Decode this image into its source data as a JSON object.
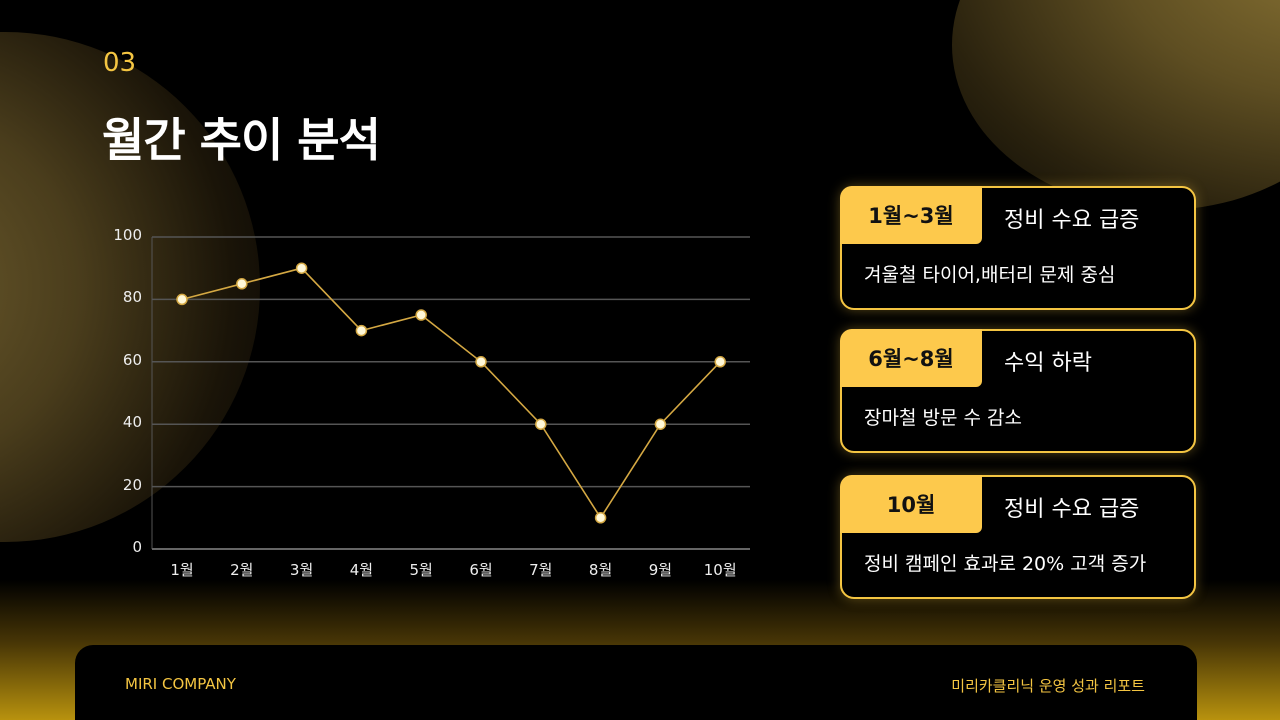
{
  "section": {
    "number": "03",
    "title": "월간 추이 분석"
  },
  "chart_data": {
    "type": "line",
    "title": "",
    "xlabel": "",
    "ylabel": "",
    "categories": [
      "1월",
      "2월",
      "3월",
      "4월",
      "5월",
      "6월",
      "7월",
      "8월",
      "9월",
      "10월"
    ],
    "values": [
      80,
      85,
      90,
      70,
      75,
      60,
      40,
      10,
      40,
      60
    ],
    "ylim": [
      0,
      100
    ],
    "yticks": [
      0,
      20,
      40,
      60,
      80,
      100
    ],
    "grid": true,
    "legend": null,
    "line_color": "#d4a843",
    "marker_color": "#fff8d8"
  },
  "cards": [
    {
      "tag": "1월~3월",
      "heading": "정비 수요 급증",
      "body": "겨울철 타이어,배터리 문제 중심"
    },
    {
      "tag": "6월~8월",
      "heading": "수익 하락",
      "body": "장마철 방문 수 감소"
    },
    {
      "tag": "10월",
      "heading": "정비 수요 급증",
      "body": "정비 캠페인 효과로 20% 고객 증가"
    }
  ],
  "footer": {
    "company": "MIRI COMPANY",
    "report": "미리카클리닉  운영 성과 리포트"
  },
  "colors": {
    "accent": "#f4c542",
    "tag_bg": "#fdc94c",
    "background": "#000000"
  }
}
